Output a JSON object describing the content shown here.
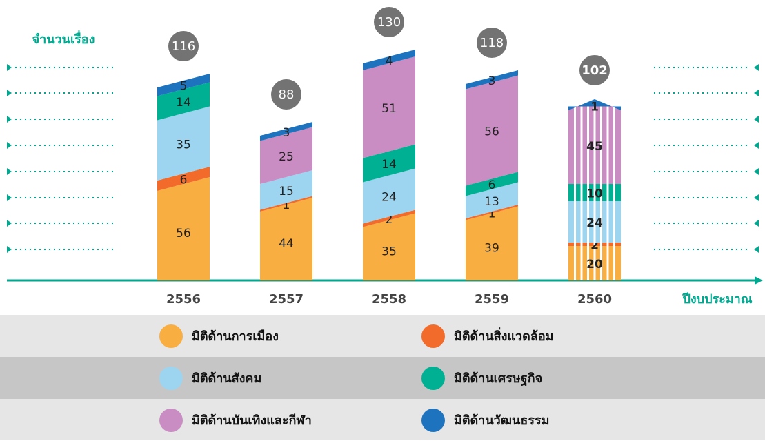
{
  "chart_data": {
    "type": "bar",
    "stacked": true,
    "y_label": "จำนวนเรื่อง",
    "x_label": "ปีงบประมาณ",
    "categories": [
      "2556",
      "2557",
      "2558",
      "2559",
      "2560"
    ],
    "series": [
      {
        "name": "มิติด้านการเมือง",
        "color": "#f9ae41",
        "values": [
          56,
          44,
          35,
          39,
          20
        ]
      },
      {
        "name": "มิติด้านสิ่งแวดล้อม",
        "color": "#f26b2a",
        "values": [
          6,
          1,
          2,
          1,
          2
        ]
      },
      {
        "name": "มิติด้านสังคม",
        "color": "#9dd5f0",
        "values": [
          35,
          15,
          24,
          13,
          24
        ]
      },
      {
        "name": "มิติด้านเศรษฐกิจ",
        "color": "#00b092",
        "values": [
          14,
          null,
          14,
          6,
          10
        ]
      },
      {
        "name": "มิติด้านบันเทิงและกีฬา",
        "color": "#c98cc3",
        "values": [
          null,
          25,
          51,
          56,
          45
        ]
      },
      {
        "name": "มิติด้านวัฒนธรรม",
        "color": "#1e73be",
        "values": [
          5,
          3,
          4,
          3,
          1
        ]
      }
    ],
    "totals": {
      "values": [
        116,
        88,
        130,
        118,
        102
      ]
    }
  }
}
